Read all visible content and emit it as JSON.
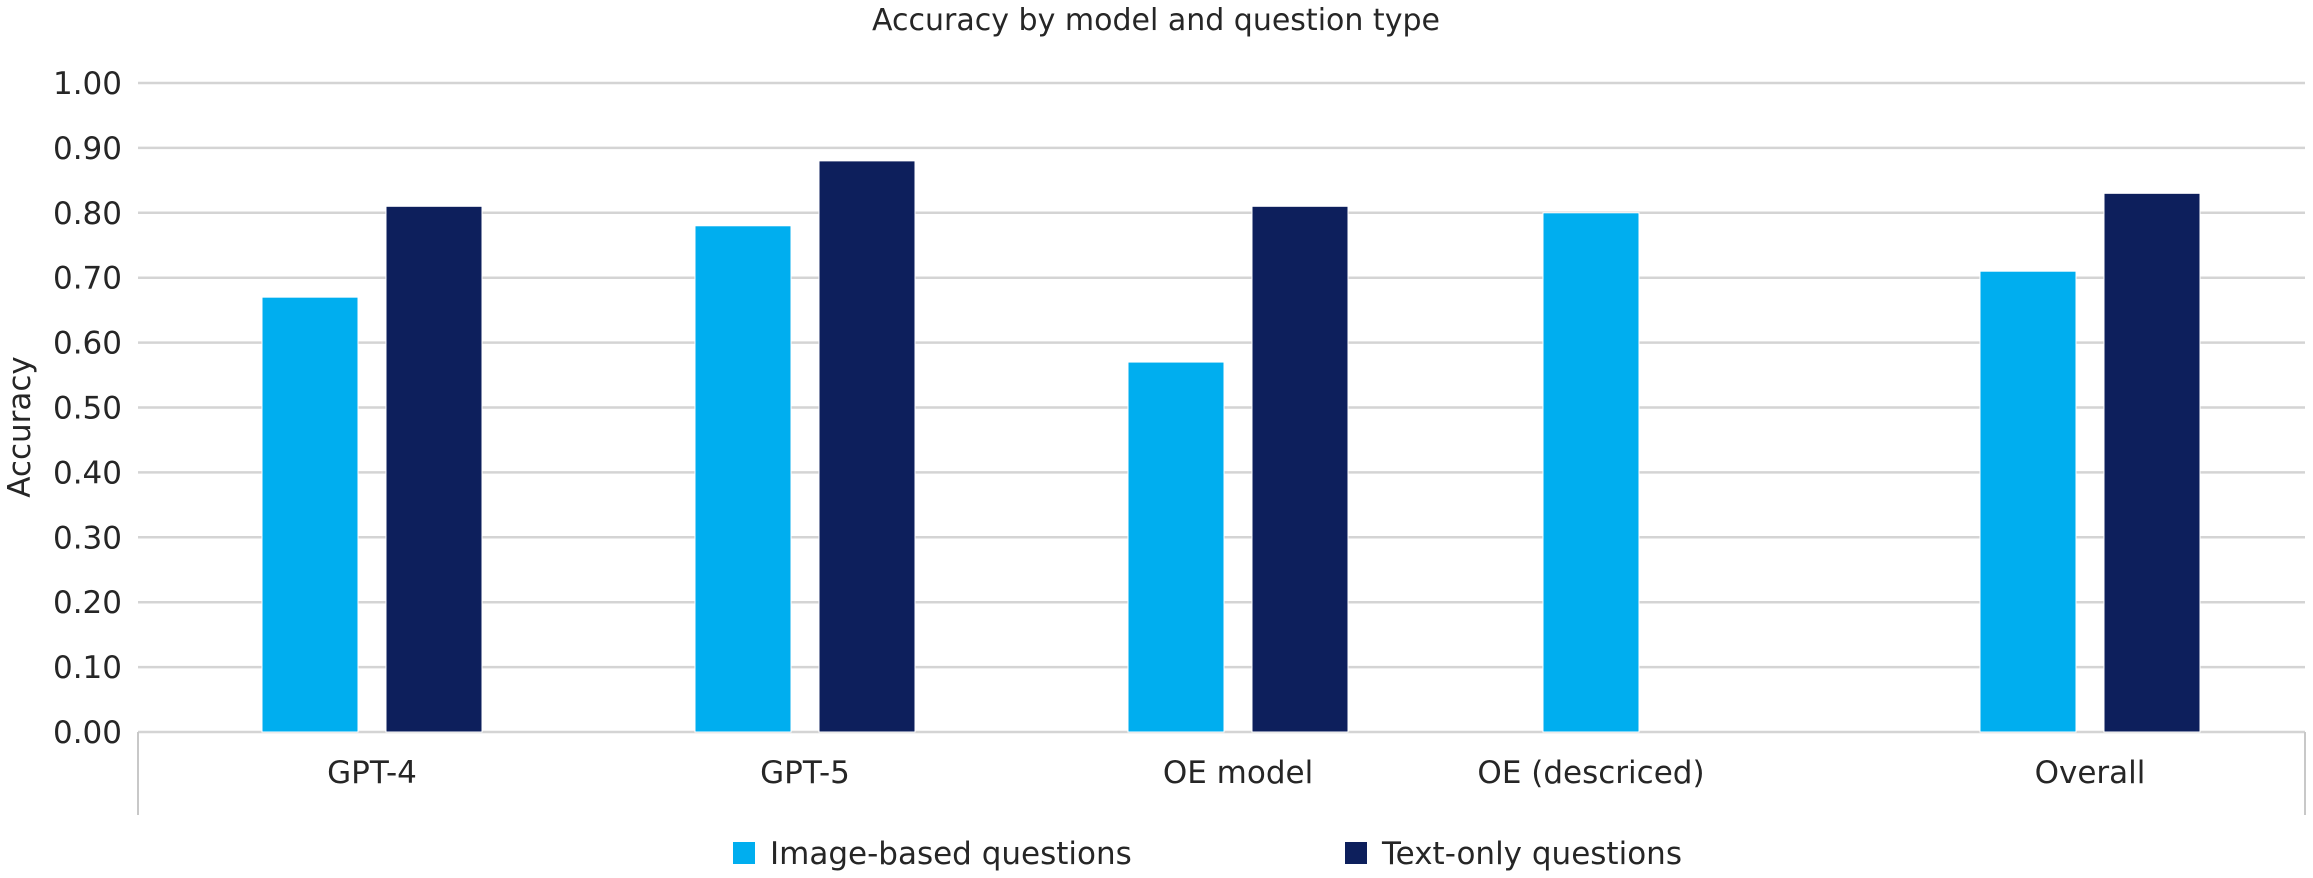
{
  "chart_data": {
    "type": "bar",
    "title": "Accuracy by model and question type",
    "xlabel": "",
    "ylabel": "Accuracy",
    "ylim": [
      0,
      1
    ],
    "yticks": [
      "0.00",
      "0.10",
      "0.20",
      "0.30",
      "0.40",
      "0.50",
      "0.60",
      "0.70",
      "0.80",
      "0.90",
      "1.00"
    ],
    "grid": true,
    "legend_position": "bottom",
    "categories": [
      "GPT-4",
      "GPT-5",
      "OE model",
      "OE (descriced)",
      "Overall"
    ],
    "series": [
      {
        "name": "Image-based questions",
        "color": "#00aeef",
        "values": [
          0.67,
          0.78,
          0.57,
          0.8,
          0.71
        ]
      },
      {
        "name": "Text-only questions",
        "color": "#0d1f5c",
        "values": [
          0.81,
          0.88,
          0.81,
          null,
          0.83
        ]
      }
    ]
  }
}
